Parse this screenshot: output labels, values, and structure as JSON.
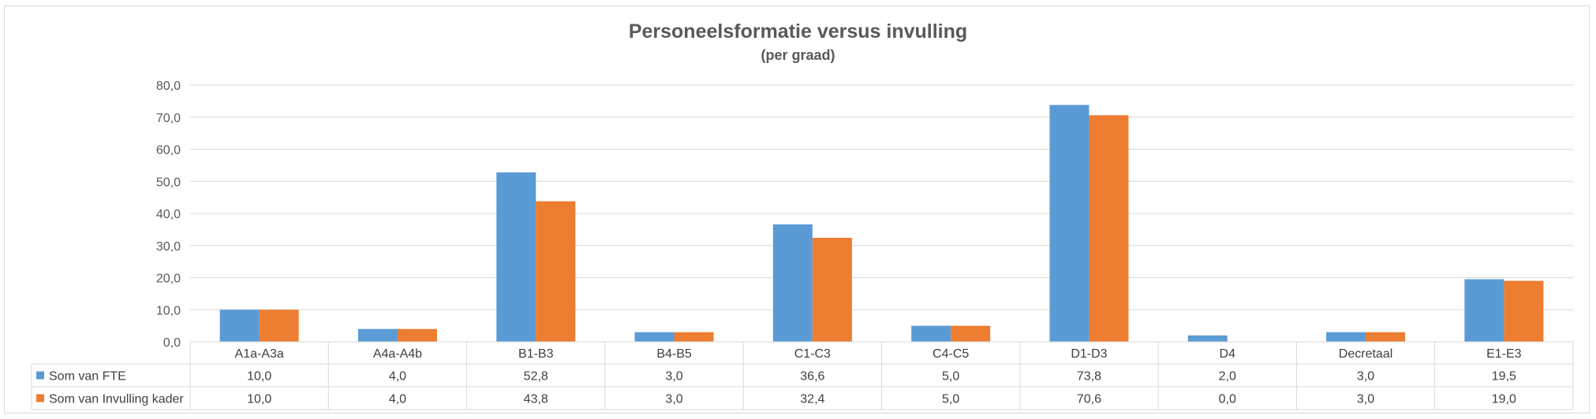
{
  "chart_data": {
    "type": "bar",
    "title": "Personeelsformatie versus invulling",
    "subtitle": "(per graad)",
    "categories": [
      "A1a-A3a",
      "A4a-A4b",
      "B1-B3",
      "B4-B5",
      "C1-C3",
      "C4-C5",
      "D1-D3",
      "D4",
      "Decretaal",
      "E1-E3"
    ],
    "series": [
      {
        "name": "Som van FTE",
        "color": "#5b9bd5",
        "values": [
          10.0,
          4.0,
          52.8,
          3.0,
          36.6,
          5.0,
          73.8,
          2.0,
          3.0,
          19.5
        ],
        "labels": [
          "10,0",
          "4,0",
          "52,8",
          "3,0",
          "36,6",
          "5,0",
          "73,8",
          "2,0",
          "3,0",
          "19,5"
        ]
      },
      {
        "name": "Som van Invulling kader",
        "color": "#ed7d31",
        "values": [
          10.0,
          4.0,
          43.8,
          3.0,
          32.4,
          5.0,
          70.6,
          0.0,
          3.0,
          19.0
        ],
        "labels": [
          "10,0",
          "4,0",
          "43,8",
          "3,0",
          "32,4",
          "5,0",
          "70,6",
          "0,0",
          "3,0",
          "19,0"
        ]
      }
    ],
    "ylim": [
      0,
      80
    ],
    "yticks": [
      0,
      10,
      20,
      30,
      40,
      50,
      60,
      70,
      80
    ],
    "ytick_labels": [
      "0,0",
      "10,0",
      "20,0",
      "30,0",
      "40,0",
      "50,0",
      "60,0",
      "70,0",
      "80,0"
    ],
    "grid": true,
    "legend": "data-table",
    "gridline_color": "#d9d9d9",
    "text_color": "#595959"
  }
}
